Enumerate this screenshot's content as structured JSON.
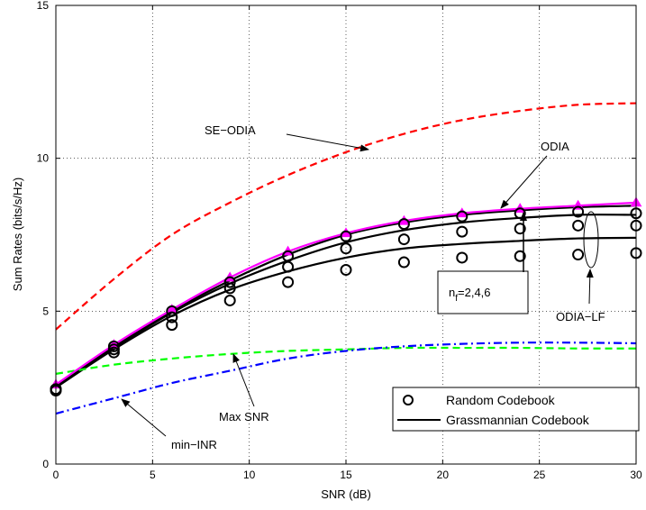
{
  "chart_data": {
    "type": "line",
    "title": "",
    "xlabel": "SNR (dB)",
    "ylabel": "Sum Rates (bits/s/Hz)",
    "xlim": [
      0,
      30
    ],
    "ylim": [
      0,
      15
    ],
    "xticks": [
      0,
      5,
      10,
      15,
      20,
      25,
      30
    ],
    "yticks": [
      0,
      5,
      10,
      15
    ],
    "grid": true,
    "legend_position": "bottom-right",
    "legend": [
      {
        "label": "Random Codebook",
        "marker": "circle"
      },
      {
        "label": "Grassmannian Codebook",
        "style": "solid"
      }
    ],
    "series": [
      {
        "name": "SE−ODIA",
        "color": "#ff0000",
        "style": "dashed",
        "x": [
          0,
          3,
          6,
          9,
          12,
          15,
          18,
          21,
          24,
          27,
          30
        ],
        "y": [
          4.4,
          6.05,
          7.5,
          8.55,
          9.45,
          10.2,
          10.8,
          11.25,
          11.55,
          11.75,
          11.8
        ]
      },
      {
        "name": "ODIA",
        "color": "#ff00ff",
        "style": "solid",
        "marker": "triangle",
        "x": [
          0,
          3,
          6,
          9,
          12,
          15,
          18,
          21,
          24,
          27,
          30
        ],
        "y": [
          2.6,
          3.9,
          5.05,
          6.1,
          6.95,
          7.55,
          7.95,
          8.2,
          8.35,
          8.45,
          8.55
        ]
      },
      {
        "color": "#000000",
        "style": "solid",
        "x": [
          0,
          3,
          6,
          9,
          12,
          15,
          18,
          21,
          24,
          27,
          30
        ],
        "y": [
          2.55,
          3.85,
          5.0,
          6.0,
          6.85,
          7.5,
          7.9,
          8.15,
          8.3,
          8.4,
          8.45
        ]
      },
      {
        "color": "#000000",
        "style": "solid",
        "x": [
          0,
          3,
          6,
          9,
          12,
          15,
          18,
          21,
          24,
          27,
          30
        ],
        "y": [
          2.55,
          3.8,
          4.95,
          5.9,
          6.65,
          7.25,
          7.65,
          7.9,
          8.05,
          8.15,
          8.15
        ]
      },
      {
        "color": "#000000",
        "style": "solid",
        "x": [
          0,
          3,
          6,
          9,
          12,
          15,
          18,
          21,
          24,
          27,
          30
        ],
        "y": [
          2.5,
          3.75,
          4.85,
          5.7,
          6.3,
          6.75,
          7.05,
          7.2,
          7.3,
          7.38,
          7.4
        ]
      },
      {
        "name": "Max SNR",
        "color": "#00ff00",
        "style": "dashed",
        "x": [
          0,
          3,
          6,
          9,
          12,
          15,
          18,
          21,
          24,
          27,
          30
        ],
        "y": [
          2.95,
          3.25,
          3.45,
          3.6,
          3.7,
          3.75,
          3.8,
          3.8,
          3.8,
          3.78,
          3.78
        ]
      },
      {
        "name": "min−INR",
        "color": "#0000ff",
        "style": "dashdot",
        "x": [
          0,
          3,
          6,
          9,
          12,
          15,
          18,
          21,
          24,
          27,
          30
        ],
        "y": [
          1.65,
          2.15,
          2.65,
          3.05,
          3.45,
          3.7,
          3.85,
          3.93,
          3.97,
          3.97,
          3.95
        ]
      }
    ],
    "random_codebook_points": [
      {
        "x": [
          0,
          3,
          6,
          9,
          12,
          15,
          18,
          21,
          24,
          27,
          30
        ],
        "y": [
          2.45,
          3.85,
          5.0,
          5.95,
          6.8,
          7.45,
          7.85,
          8.1,
          8.2,
          8.25,
          8.2
        ]
      },
      {
        "x": [
          0,
          3,
          6,
          9,
          12,
          15,
          18,
          21,
          24,
          27,
          30
        ],
        "y": [
          2.45,
          3.75,
          4.8,
          5.75,
          6.45,
          7.05,
          7.35,
          7.6,
          7.7,
          7.8,
          7.8
        ]
      },
      {
        "x": [
          0,
          3,
          6,
          9,
          12,
          15,
          18,
          21,
          24,
          27,
          30
        ],
        "y": [
          2.4,
          3.65,
          4.55,
          5.35,
          5.95,
          6.35,
          6.6,
          6.75,
          6.8,
          6.85,
          6.9
        ]
      }
    ],
    "annotations": [
      {
        "text": "SE−ODIA"
      },
      {
        "text": "ODIA"
      },
      {
        "text": "ODIA−LF"
      },
      {
        "text": "Max SNR"
      },
      {
        "text": "min−INR"
      },
      {
        "text_main": "n",
        "text_sub": "f",
        "text_rest": "=2,4,6"
      }
    ]
  }
}
